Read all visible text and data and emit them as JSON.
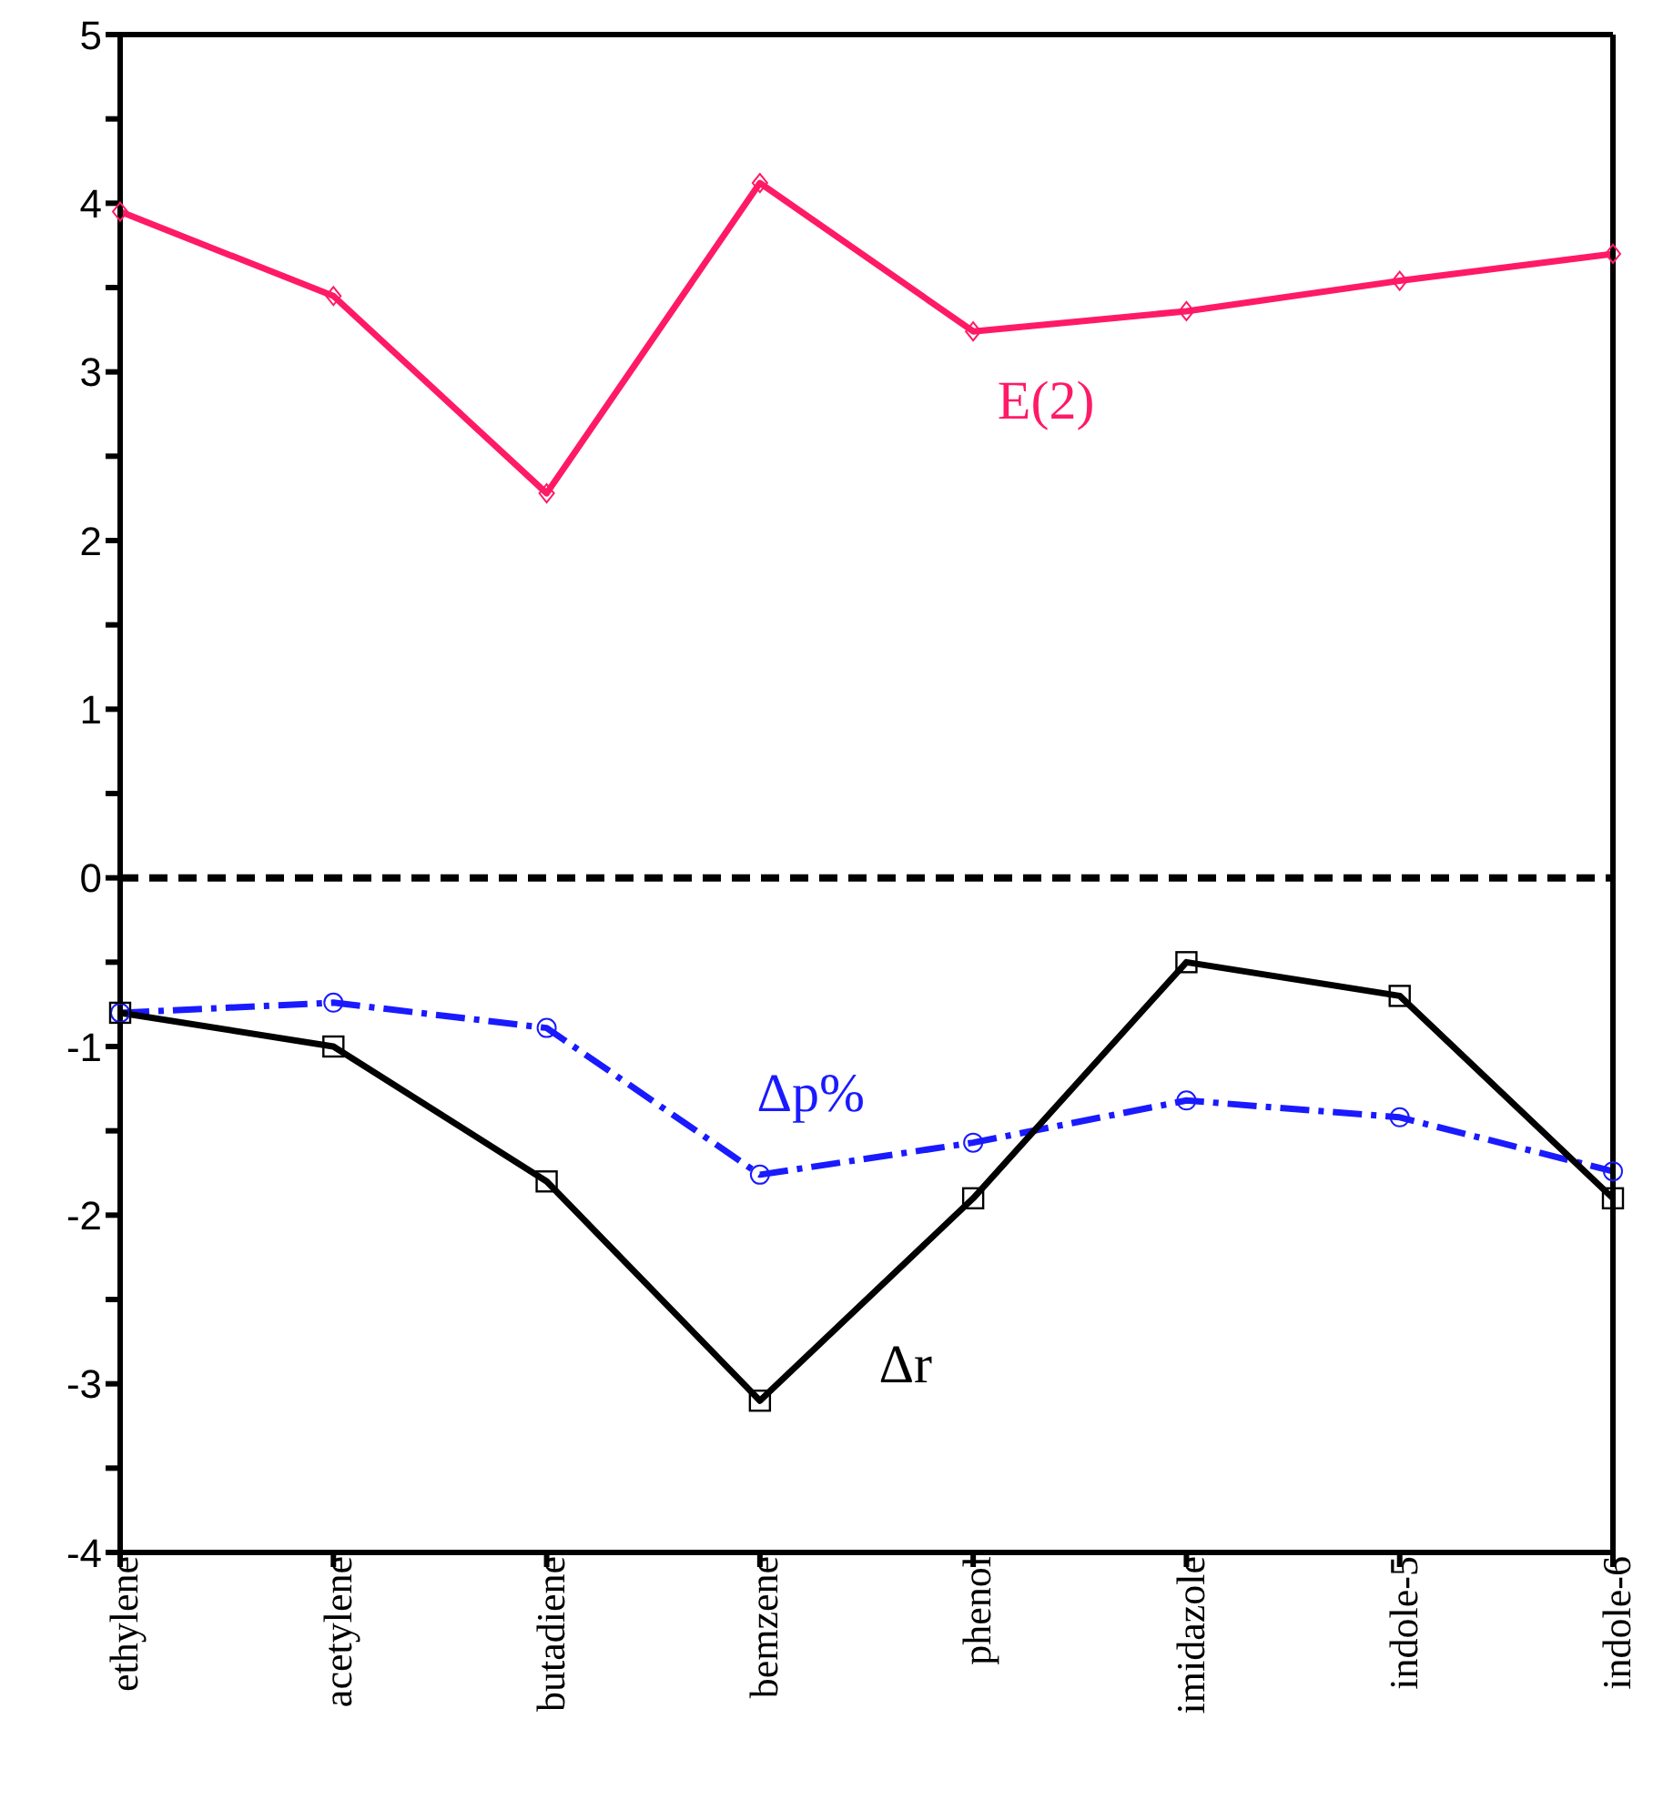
{
  "chart_data": {
    "type": "line",
    "categories": [
      "ethylene",
      "acetylene",
      "butadiene",
      "bemzene",
      "phenol",
      "imidazole",
      "indole-5",
      "indole-6"
    ],
    "series": [
      {
        "name": "E(2)",
        "color": "#ff1a66",
        "marker": "diamond",
        "line_style": "solid",
        "values": [
          3.95,
          3.45,
          2.28,
          4.12,
          3.24,
          3.36,
          3.54,
          3.7
        ]
      },
      {
        "name": "Δp%",
        "color": "#1a1aff",
        "marker": "circle",
        "line_style": "dashed",
        "values": [
          -0.8,
          -0.74,
          -0.89,
          -1.76,
          -1.57,
          -1.32,
          -1.42,
          -1.74
        ]
      },
      {
        "name": "Δr",
        "color": "#000000",
        "marker": "square",
        "line_style": "solid",
        "values": [
          -0.8,
          -1.0,
          -1.8,
          -3.1,
          -1.9,
          -0.5,
          -0.7,
          -1.9
        ]
      }
    ],
    "ylim": [
      -4,
      5
    ],
    "yticks": [
      -4,
      {
        "value": -3.5,
        "label": null
      },
      -3,
      {
        "value": -2.5,
        "label": null
      },
      -2,
      {
        "value": -1.5,
        "label": null
      },
      -1,
      {
        "value": -0.5,
        "label": null
      },
      0,
      {
        "value": 0.5,
        "label": null
      },
      1,
      {
        "value": 1.5,
        "label": null
      },
      2,
      {
        "value": 2.5,
        "label": null
      },
      3,
      {
        "value": 3.5,
        "label": null
      },
      4,
      {
        "value": 4.5,
        "label": null
      },
      5
    ],
    "ref_lines": [
      {
        "axis": "y",
        "value": 0,
        "color": "#000000",
        "line_style": "dashed"
      }
    ],
    "grid": false,
    "legend": false
  }
}
